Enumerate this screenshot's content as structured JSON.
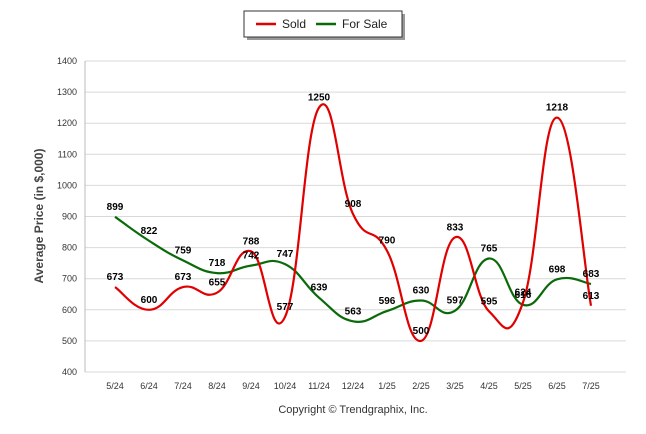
{
  "chart_data": {
    "type": "line",
    "title": "",
    "xlabel": "",
    "ylabel": "Average Price (in $,000)",
    "categories": [
      "5/24",
      "6/24",
      "7/24",
      "8/24",
      "9/24",
      "10/24",
      "11/24",
      "12/24",
      "1/25",
      "2/25",
      "3/25",
      "4/25",
      "5/25",
      "6/25",
      "7/25"
    ],
    "yticks": [
      "400",
      "500",
      "600",
      "700",
      "800",
      "900",
      "1000",
      "1100",
      "1200",
      "1300",
      "1400"
    ],
    "ylim": [
      400,
      1400
    ],
    "grid": true,
    "legend_position": "top-center",
    "series": [
      {
        "name": "Sold",
        "color": "#e00000",
        "values": [
          673,
          600,
          673,
          655,
          788,
          577,
          1250,
          908,
          790,
          500,
          833,
          595,
          624,
          1218,
          613
        ],
        "labels": [
          "673",
          "600",
          "673",
          "655",
          "788",
          "577",
          "1250",
          "908",
          "790",
          "500",
          "833",
          "595",
          "624",
          "1218",
          "613"
        ]
      },
      {
        "name": "For Sale",
        "color": "#0a6a0a",
        "values": [
          899,
          822,
          759,
          718,
          742,
          747,
          639,
          563,
          596,
          630,
          597,
          765,
          616,
          698,
          683
        ],
        "labels": [
          "899",
          "822",
          "759",
          "718",
          "742",
          "747",
          "639",
          "563",
          "596",
          "630",
          "597",
          "765",
          "616",
          "698",
          "683"
        ]
      }
    ],
    "footer": "Copyright © Trendgraphix, Inc."
  }
}
